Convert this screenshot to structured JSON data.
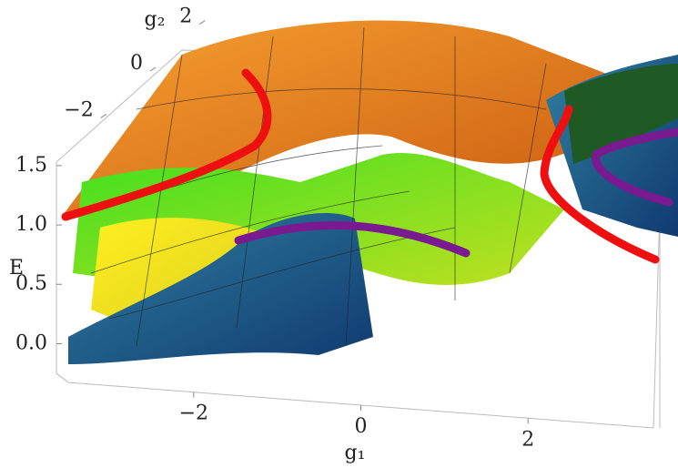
{
  "chart_data": {
    "type": "surface",
    "xlabel": "g₁",
    "ylabel": "g₂",
    "zlabel": "E",
    "xlim": [
      -3.5,
      3.5
    ],
    "xticks": [
      {
        "value": -2,
        "label": "−2"
      },
      0,
      2
    ],
    "ylim": [
      -3.5,
      3.5
    ],
    "yticks": [
      {
        "value": -2,
        "label": "−2"
      },
      0,
      2
    ],
    "zlim": [
      -0.25,
      1.53
    ],
    "zticks": [
      {
        "value": 0,
        "label": "0.0"
      },
      0.5,
      {
        "value": 1,
        "label": "1.0"
      },
      1.5
    ]
  }
}
